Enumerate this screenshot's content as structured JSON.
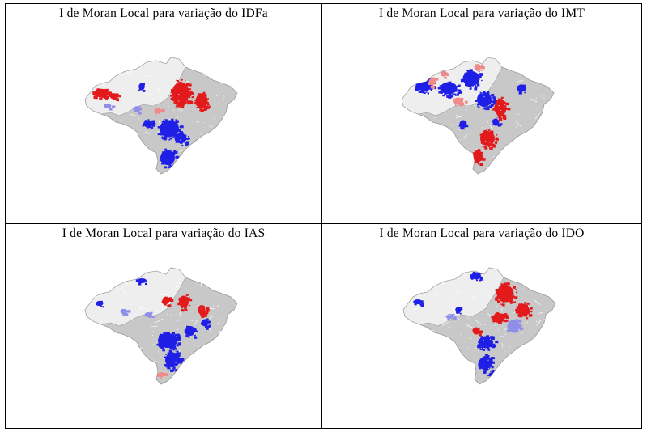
{
  "panels": [
    {
      "id": "idfa",
      "title": "I de Moran Local para variação do IDFa"
    },
    {
      "id": "imt",
      "title": "I de Moran Local para variação do IMT"
    },
    {
      "id": "ias",
      "title": "I de Moran Local para variação do IAS"
    },
    {
      "id": "ido",
      "title": "I de Moran Local para variação do IDO"
    }
  ],
  "colors": {
    "base": "#c8c8c8",
    "north_region": "#eeeeee",
    "outline": "#9a9a9a",
    "high_high": "#e31a1c",
    "low_low": "#1f1fe6",
    "low_high": "#8f8fe8",
    "high_low": "#f08a8a"
  }
}
